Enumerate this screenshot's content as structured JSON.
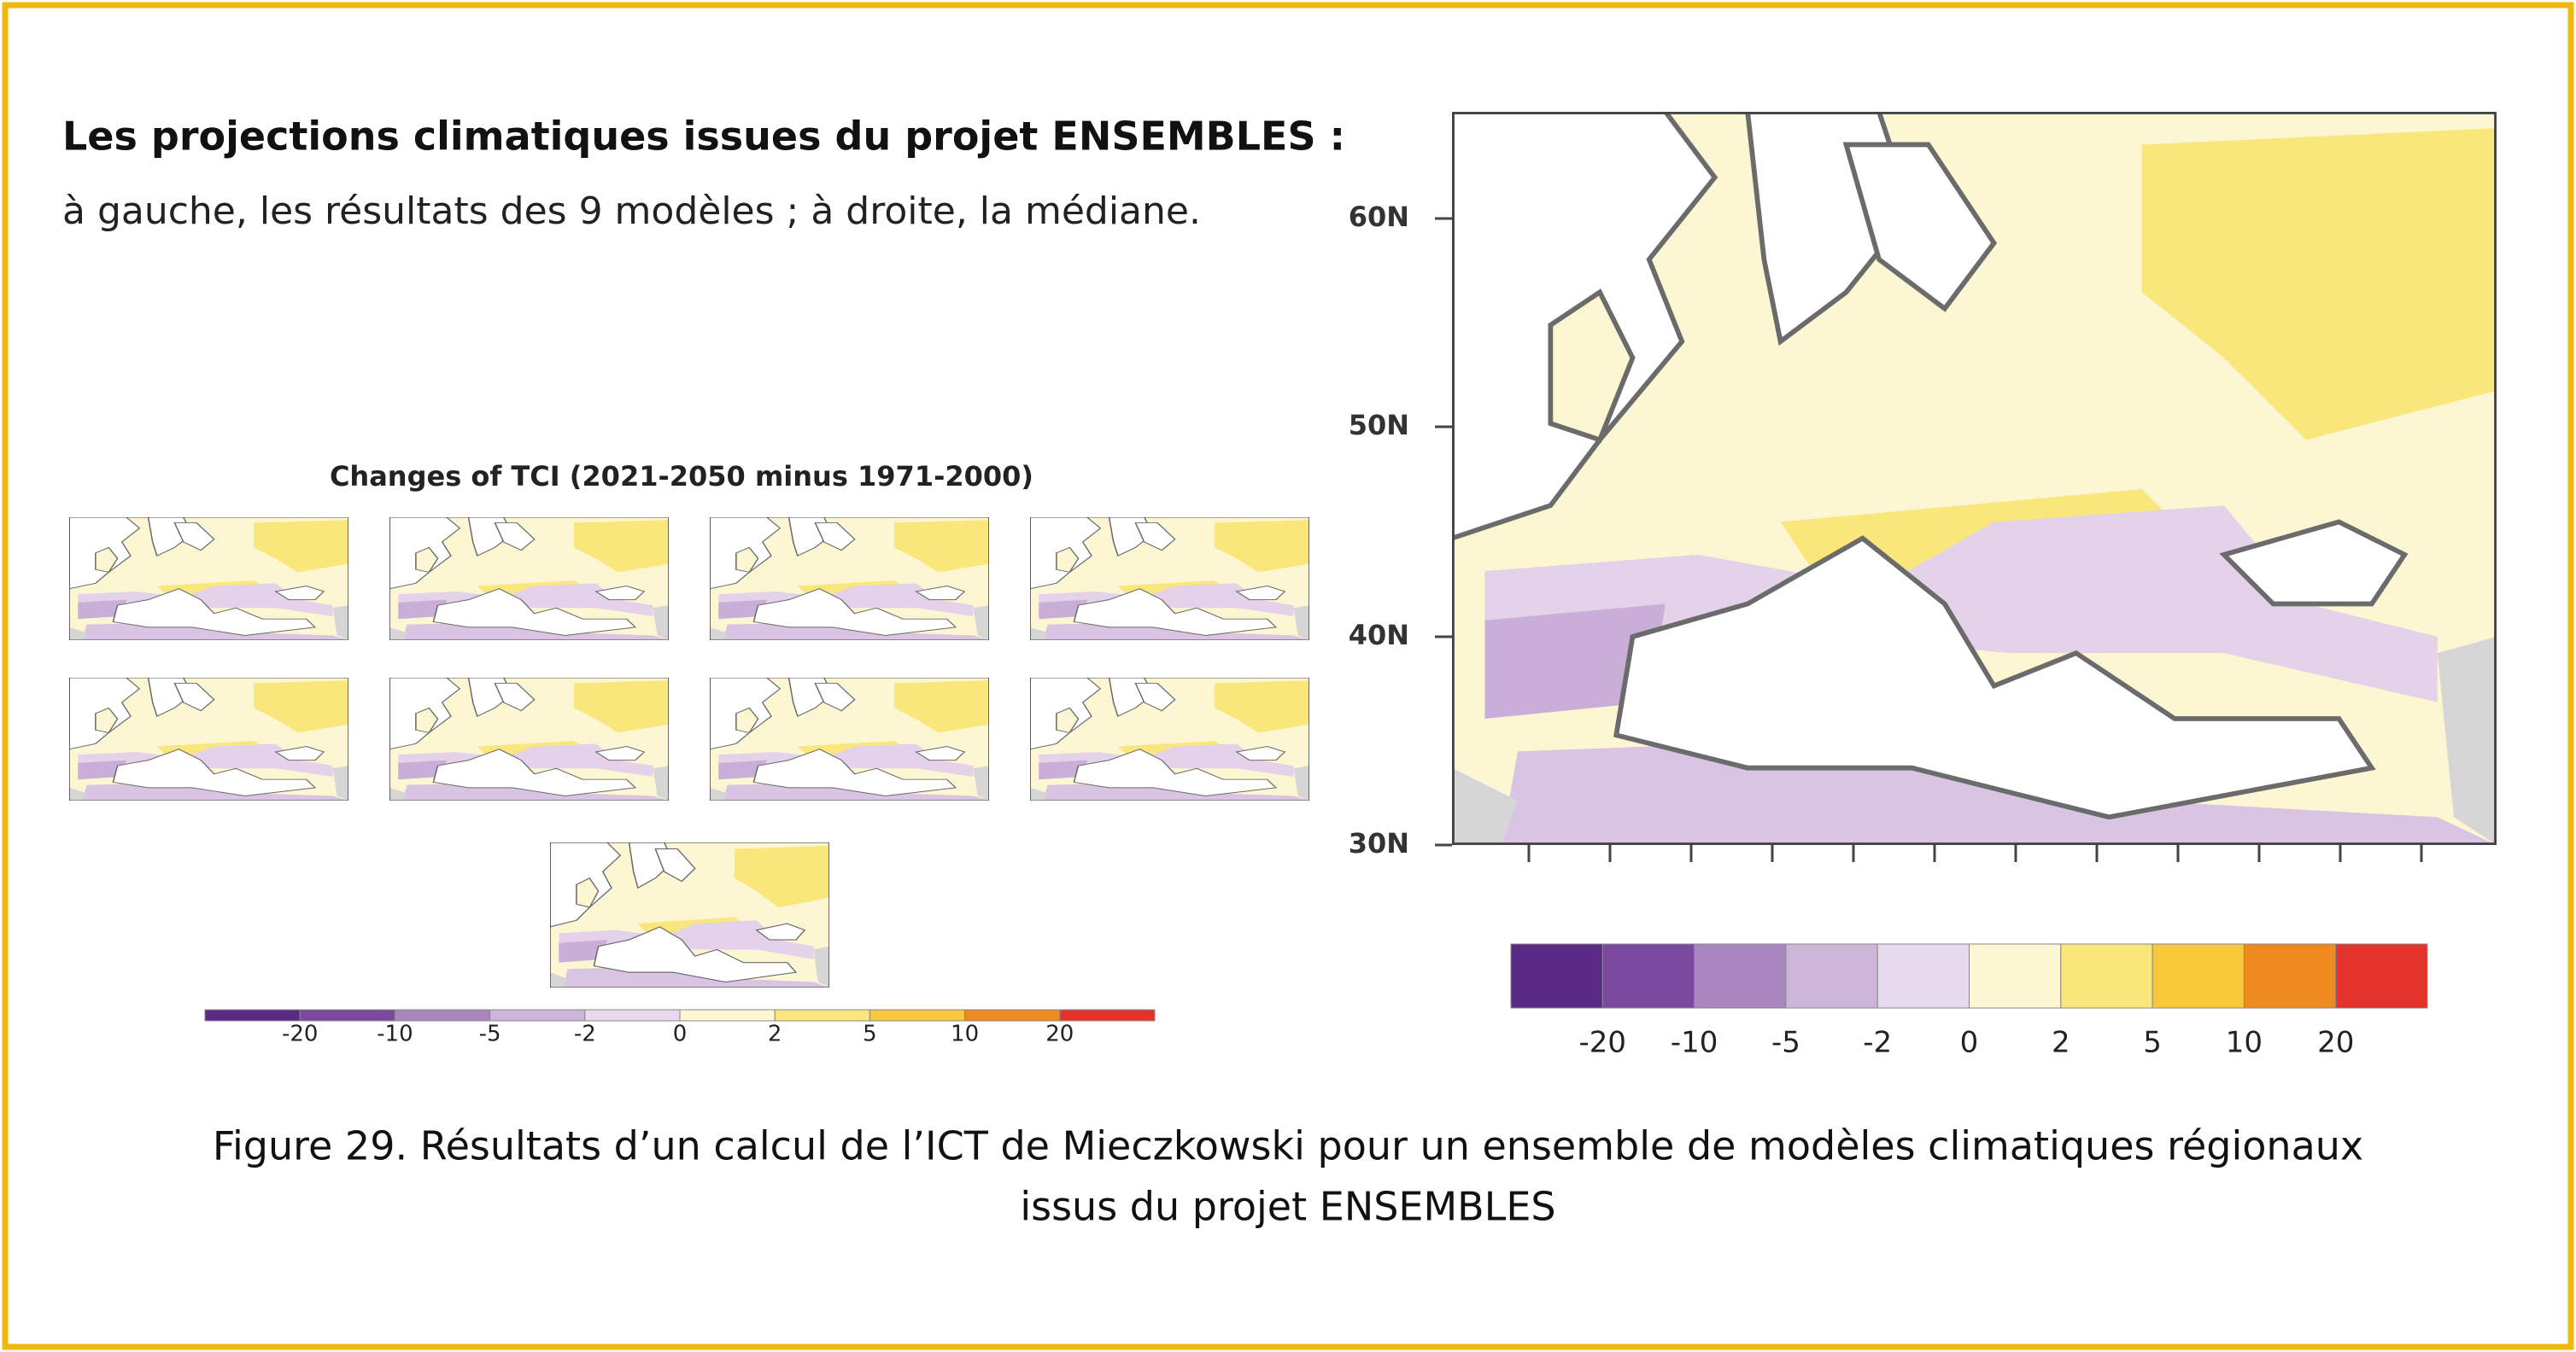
{
  "header": {
    "title": "Les projections climatiques issues du projet ENSEMBLES :",
    "subtitle": "à gauche, les résultats des 9 modèles ; à droite, la médiane."
  },
  "left_figure": {
    "title": "Changes of TCI (2021-2050 minus 1971-2000)"
  },
  "right_figure": {
    "lat_labels": [
      "60N",
      "50N",
      "40N",
      "30N"
    ]
  },
  "colorbar": {
    "labels": [
      "-20",
      "-10",
      "-5",
      "-2",
      "0",
      "2",
      "5",
      "10",
      "20"
    ],
    "colors": [
      "#5a2a84",
      "#7b4a9e",
      "#a986bf",
      "#cdb5da",
      "#e8daee",
      "#fdf6d2",
      "#fae77c",
      "#f8c73a",
      "#ef8a1f",
      "#e3312b"
    ]
  },
  "caption": [
    "Figure 29. Résultats d’un calcul de l’ICT de Mieczkowski pour un ensemble de modèles climatiques régionaux",
    "issus du projet ENSEMBLES"
  ]
}
